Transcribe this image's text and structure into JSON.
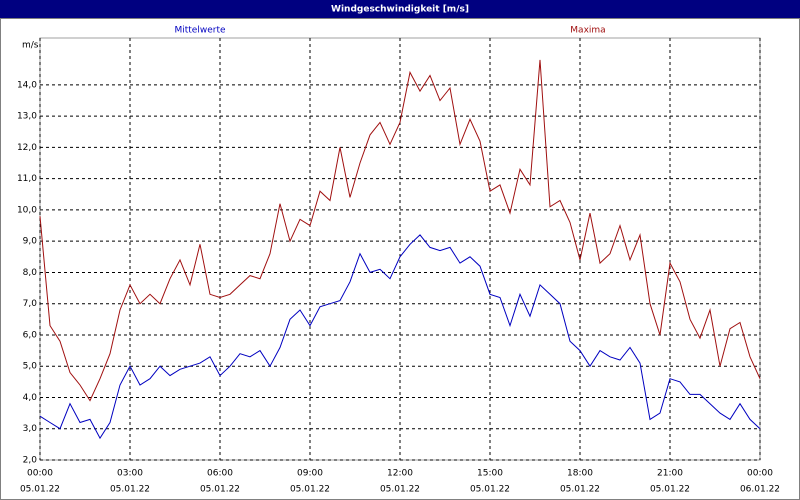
{
  "chart_data": {
    "type": "line",
    "title": "Windgeschwindigkeit [m/s]",
    "y_label": "m/s",
    "x": [
      0,
      20,
      40,
      60,
      80,
      100,
      120,
      140,
      160,
      180,
      200,
      220,
      240,
      260,
      280,
      300,
      320,
      340,
      360,
      380,
      400,
      420,
      440,
      460,
      480,
      500,
      520,
      540,
      560,
      580,
      600,
      620,
      640,
      660,
      680,
      700,
      720,
      740,
      760,
      780,
      800,
      820,
      840,
      860,
      880,
      900,
      920,
      940,
      960,
      980,
      1000,
      1020,
      1040,
      1060,
      1080,
      1100,
      1120,
      1140,
      1160,
      1180,
      1200,
      1220,
      1240,
      1260,
      1280,
      1300,
      1320,
      1340,
      1360,
      1380,
      1400,
      1420,
      1440
    ],
    "series": [
      {
        "name": "Mittelwerte",
        "color": "#0000c0",
        "values": [
          3.4,
          3.2,
          3.0,
          3.8,
          3.2,
          3.3,
          2.7,
          3.2,
          4.4,
          5.0,
          4.4,
          4.6,
          5.0,
          4.7,
          4.9,
          5.0,
          5.1,
          5.3,
          4.7,
          5.0,
          5.4,
          5.3,
          5.5,
          5.0,
          5.6,
          6.5,
          6.8,
          6.3,
          6.9,
          7.0,
          7.1,
          7.7,
          8.6,
          8.0,
          8.1,
          7.8,
          8.5,
          8.9,
          9.2,
          8.8,
          8.7,
          8.8,
          8.3,
          8.5,
          8.2,
          7.3,
          7.2,
          6.3,
          7.3,
          6.6,
          7.6,
          7.3,
          7.0,
          5.8,
          5.5,
          5.0,
          5.5,
          5.3,
          5.2,
          5.6,
          5.1,
          3.3,
          3.5,
          4.6,
          4.5,
          4.1,
          4.1,
          3.8,
          3.5,
          3.3,
          3.8,
          3.3,
          3.0
        ]
      },
      {
        "name": "Maxima",
        "color": "#a01010",
        "values": [
          9.8,
          6.3,
          5.8,
          4.8,
          4.4,
          3.9,
          4.6,
          5.4,
          6.8,
          7.6,
          7.0,
          7.3,
          7.0,
          7.8,
          8.4,
          7.6,
          8.9,
          7.3,
          7.2,
          7.3,
          7.6,
          7.9,
          7.8,
          8.6,
          10.2,
          9.0,
          9.7,
          9.5,
          10.6,
          10.3,
          12.0,
          10.4,
          11.5,
          12.4,
          12.8,
          12.1,
          12.8,
          14.4,
          13.8,
          14.3,
          13.5,
          13.9,
          12.1,
          12.9,
          12.2,
          10.6,
          10.8,
          9.9,
          11.3,
          10.8,
          14.8,
          10.1,
          10.3,
          9.6,
          8.4,
          9.9,
          8.3,
          8.6,
          9.5,
          8.4,
          9.2,
          7.0,
          6.0,
          8.3,
          7.7,
          6.5,
          5.9,
          6.8,
          5.0,
          6.2,
          6.4,
          5.3,
          4.6
        ]
      }
    ],
    "xlim": [
      0,
      1440
    ],
    "xticks": [
      {
        "value": 0,
        "label": "00:00",
        "sublabel": "05.01.22"
      },
      {
        "value": 180,
        "label": "03:00",
        "sublabel": "05.01.22"
      },
      {
        "value": 360,
        "label": "06:00",
        "sublabel": "05.01.22"
      },
      {
        "value": 540,
        "label": "09:00",
        "sublabel": "05.01.22"
      },
      {
        "value": 720,
        "label": "12:00",
        "sublabel": "05.01.22"
      },
      {
        "value": 900,
        "label": "15:00",
        "sublabel": "05.01.22"
      },
      {
        "value": 1080,
        "label": "18:00",
        "sublabel": "05.01.22"
      },
      {
        "value": 1260,
        "label": "21:00",
        "sublabel": "05.01.22"
      },
      {
        "value": 1440,
        "label": "00:00",
        "sublabel": "06.01.22"
      }
    ],
    "ylim": [
      2,
      15.5
    ],
    "yticks": [
      {
        "value": 2,
        "label": "2,0"
      },
      {
        "value": 3,
        "label": "3,0"
      },
      {
        "value": 4,
        "label": "4,0"
      },
      {
        "value": 5,
        "label": "5,0"
      },
      {
        "value": 6,
        "label": "6,0"
      },
      {
        "value": 7,
        "label": "7,0"
      },
      {
        "value": 8,
        "label": "8,0"
      },
      {
        "value": 9,
        "label": "9,0"
      },
      {
        "value": 10,
        "label": "10,0"
      },
      {
        "value": 11,
        "label": "11,0"
      },
      {
        "value": 12,
        "label": "12,0"
      },
      {
        "value": 13,
        "label": "13,0"
      },
      {
        "value": 14,
        "label": "14,0"
      }
    ],
    "grid": true
  }
}
